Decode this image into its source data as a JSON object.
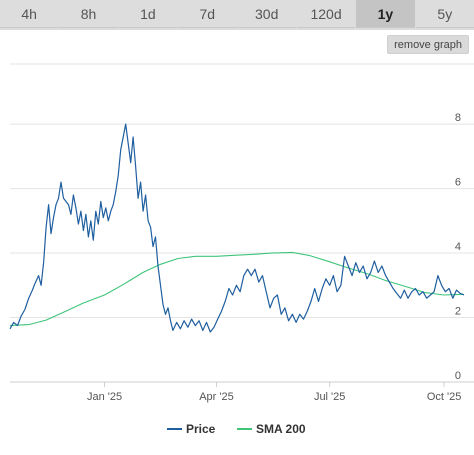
{
  "range_buttons": [
    {
      "label": "4h",
      "active": false
    },
    {
      "label": "8h",
      "active": false
    },
    {
      "label": "1d",
      "active": false
    },
    {
      "label": "7d",
      "active": false
    },
    {
      "label": "30d",
      "active": false
    },
    {
      "label": "120d",
      "active": false
    },
    {
      "label": "1y",
      "active": true
    },
    {
      "label": "5y",
      "active": false
    }
  ],
  "remove_graph_label": "remove graph",
  "colors": {
    "price": "#1f5fa0",
    "sma": "#3ec57a",
    "grid": "#e4e4e4",
    "active_range": "#c4c4c4"
  },
  "chart_data": {
    "type": "line",
    "xlabel": "",
    "ylabel": "",
    "x_range": [
      "2024-10-17",
      "2025-10-17"
    ],
    "ylim": [
      0,
      8.5
    ],
    "y_ticks": [
      0,
      2,
      4,
      6,
      8
    ],
    "x_ticks": [
      {
        "label": "Jan '25",
        "date": "2025-01-01"
      },
      {
        "label": "Apr '25",
        "date": "2025-04-01"
      },
      {
        "label": "Jul '25",
        "date": "2025-07-01"
      },
      {
        "label": "Oct '25",
        "date": "2025-10-01"
      }
    ],
    "grid": true,
    "legend": "bottom",
    "series": [
      {
        "name": "Price",
        "color": "#1f5fa0",
        "points": [
          [
            "2024-10-17",
            1.65
          ],
          [
            "2024-10-20",
            1.85
          ],
          [
            "2024-10-23",
            1.75
          ],
          [
            "2024-10-26",
            2.05
          ],
          [
            "2024-10-29",
            2.25
          ],
          [
            "2024-11-01",
            2.6
          ],
          [
            "2024-11-04",
            2.85
          ],
          [
            "2024-11-06",
            3.05
          ],
          [
            "2024-11-09",
            3.3
          ],
          [
            "2024-11-11",
            3.0
          ],
          [
            "2024-11-13",
            3.7
          ],
          [
            "2024-11-15",
            4.8
          ],
          [
            "2024-11-17",
            5.5
          ],
          [
            "2024-11-19",
            4.6
          ],
          [
            "2024-11-21",
            5.1
          ],
          [
            "2024-11-23",
            5.5
          ],
          [
            "2024-11-25",
            5.7
          ],
          [
            "2024-11-27",
            6.2
          ],
          [
            "2024-11-29",
            5.7
          ],
          [
            "2024-12-01",
            5.6
          ],
          [
            "2024-12-03",
            5.5
          ],
          [
            "2024-12-05",
            5.2
          ],
          [
            "2024-12-07",
            5.8
          ],
          [
            "2024-12-09",
            5.4
          ],
          [
            "2024-12-11",
            4.9
          ],
          [
            "2024-12-13",
            5.3
          ],
          [
            "2024-12-15",
            4.7
          ],
          [
            "2024-12-17",
            5.2
          ],
          [
            "2024-12-19",
            4.5
          ],
          [
            "2024-12-21",
            5.0
          ],
          [
            "2024-12-23",
            4.4
          ],
          [
            "2024-12-25",
            5.3
          ],
          [
            "2024-12-27",
            4.9
          ],
          [
            "2024-12-29",
            5.6
          ],
          [
            "2024-12-31",
            5.1
          ],
          [
            "2025-01-02",
            5.4
          ],
          [
            "2025-01-04",
            5.0
          ],
          [
            "2025-01-06",
            5.3
          ],
          [
            "2025-01-08",
            5.5
          ],
          [
            "2025-01-10",
            5.9
          ],
          [
            "2025-01-12",
            6.4
          ],
          [
            "2025-01-14",
            7.2
          ],
          [
            "2025-01-16",
            7.6
          ],
          [
            "2025-01-18",
            8.0
          ],
          [
            "2025-01-20",
            7.4
          ],
          [
            "2025-01-22",
            6.8
          ],
          [
            "2025-01-24",
            7.6
          ],
          [
            "2025-01-26",
            6.7
          ],
          [
            "2025-01-28",
            5.7
          ],
          [
            "2025-01-30",
            6.2
          ],
          [
            "2025-02-01",
            5.3
          ],
          [
            "2025-02-03",
            5.8
          ],
          [
            "2025-02-05",
            5.0
          ],
          [
            "2025-02-07",
            4.8
          ],
          [
            "2025-02-09",
            4.2
          ],
          [
            "2025-02-11",
            4.5
          ],
          [
            "2025-02-13",
            3.6
          ],
          [
            "2025-02-15",
            3.0
          ],
          [
            "2025-02-17",
            2.4
          ],
          [
            "2025-02-19",
            2.1
          ],
          [
            "2025-02-21",
            2.3
          ],
          [
            "2025-02-23",
            1.9
          ],
          [
            "2025-02-25",
            1.6
          ],
          [
            "2025-02-28",
            1.85
          ],
          [
            "2025-03-03",
            1.65
          ],
          [
            "2025-03-06",
            1.9
          ],
          [
            "2025-03-09",
            1.7
          ],
          [
            "2025-03-12",
            1.95
          ],
          [
            "2025-03-15",
            1.75
          ],
          [
            "2025-03-18",
            1.9
          ],
          [
            "2025-03-21",
            1.6
          ],
          [
            "2025-03-24",
            1.85
          ],
          [
            "2025-03-27",
            1.55
          ],
          [
            "2025-03-30",
            1.7
          ],
          [
            "2025-04-02",
            1.95
          ],
          [
            "2025-04-05",
            2.2
          ],
          [
            "2025-04-08",
            2.5
          ],
          [
            "2025-04-11",
            2.9
          ],
          [
            "2025-04-14",
            2.7
          ],
          [
            "2025-04-17",
            3.0
          ],
          [
            "2025-04-20",
            2.8
          ],
          [
            "2025-04-23",
            3.3
          ],
          [
            "2025-04-26",
            3.5
          ],
          [
            "2025-04-29",
            3.3
          ],
          [
            "2025-05-02",
            3.5
          ],
          [
            "2025-05-05",
            3.1
          ],
          [
            "2025-05-08",
            3.3
          ],
          [
            "2025-05-11",
            2.8
          ],
          [
            "2025-05-14",
            2.3
          ],
          [
            "2025-05-17",
            2.6
          ],
          [
            "2025-05-20",
            2.7
          ],
          [
            "2025-05-23",
            2.1
          ],
          [
            "2025-05-26",
            2.3
          ],
          [
            "2025-05-29",
            1.9
          ],
          [
            "2025-06-01",
            2.1
          ],
          [
            "2025-06-04",
            1.85
          ],
          [
            "2025-06-07",
            2.1
          ],
          [
            "2025-06-10",
            1.95
          ],
          [
            "2025-06-13",
            2.2
          ],
          [
            "2025-06-16",
            2.5
          ],
          [
            "2025-06-19",
            2.9
          ],
          [
            "2025-06-22",
            2.5
          ],
          [
            "2025-06-25",
            2.9
          ],
          [
            "2025-06-28",
            3.2
          ],
          [
            "2025-07-01",
            3.0
          ],
          [
            "2025-07-04",
            3.3
          ],
          [
            "2025-07-07",
            2.8
          ],
          [
            "2025-07-10",
            3.0
          ],
          [
            "2025-07-13",
            3.9
          ],
          [
            "2025-07-16",
            3.6
          ],
          [
            "2025-07-19",
            3.3
          ],
          [
            "2025-07-22",
            3.7
          ],
          [
            "2025-07-25",
            3.4
          ],
          [
            "2025-07-28",
            3.6
          ],
          [
            "2025-07-31",
            3.2
          ],
          [
            "2025-08-03",
            3.4
          ],
          [
            "2025-08-06",
            3.75
          ],
          [
            "2025-08-09",
            3.4
          ],
          [
            "2025-08-12",
            3.6
          ],
          [
            "2025-08-15",
            3.3
          ],
          [
            "2025-08-18",
            3.1
          ],
          [
            "2025-08-21",
            2.9
          ],
          [
            "2025-08-24",
            2.75
          ],
          [
            "2025-08-27",
            2.6
          ],
          [
            "2025-08-30",
            2.85
          ],
          [
            "2025-09-02",
            2.6
          ],
          [
            "2025-09-05",
            2.8
          ],
          [
            "2025-09-08",
            2.9
          ],
          [
            "2025-09-11",
            2.7
          ],
          [
            "2025-09-14",
            2.8
          ],
          [
            "2025-09-17",
            2.6
          ],
          [
            "2025-09-20",
            2.7
          ],
          [
            "2025-09-23",
            2.8
          ],
          [
            "2025-09-26",
            3.3
          ],
          [
            "2025-09-29",
            3.0
          ],
          [
            "2025-10-02",
            2.8
          ],
          [
            "2025-10-05",
            2.9
          ],
          [
            "2025-10-08",
            2.6
          ],
          [
            "2025-10-11",
            2.85
          ],
          [
            "2025-10-14",
            2.75
          ],
          [
            "2025-10-17",
            2.7
          ]
        ]
      },
      {
        "name": "SMA 200",
        "color": "#3ec57a",
        "points": [
          [
            "2024-10-17",
            1.75
          ],
          [
            "2024-11-01",
            1.78
          ],
          [
            "2024-11-15",
            1.92
          ],
          [
            "2024-12-01",
            2.2
          ],
          [
            "2024-12-15",
            2.45
          ],
          [
            "2025-01-01",
            2.7
          ],
          [
            "2025-01-15",
            3.0
          ],
          [
            "2025-02-01",
            3.4
          ],
          [
            "2025-02-15",
            3.65
          ],
          [
            "2025-03-01",
            3.83
          ],
          [
            "2025-03-15",
            3.9
          ],
          [
            "2025-04-01",
            3.9
          ],
          [
            "2025-04-15",
            3.93
          ],
          [
            "2025-05-01",
            3.96
          ],
          [
            "2025-05-15",
            4.0
          ],
          [
            "2025-06-01",
            4.02
          ],
          [
            "2025-06-15",
            3.92
          ],
          [
            "2025-07-01",
            3.73
          ],
          [
            "2025-07-15",
            3.55
          ],
          [
            "2025-08-01",
            3.35
          ],
          [
            "2025-08-15",
            3.15
          ],
          [
            "2025-09-01",
            2.95
          ],
          [
            "2025-09-15",
            2.78
          ],
          [
            "2025-10-01",
            2.7
          ],
          [
            "2025-10-17",
            2.72
          ]
        ]
      }
    ]
  }
}
